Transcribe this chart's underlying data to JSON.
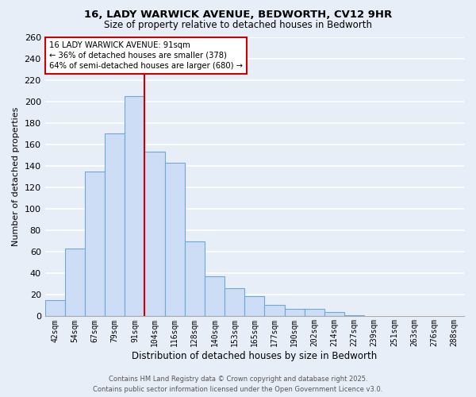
{
  "title_line1": "16, LADY WARWICK AVENUE, BEDWORTH, CV12 9HR",
  "title_line2": "Size of property relative to detached houses in Bedworth",
  "xlabel": "Distribution of detached houses by size in Bedworth",
  "ylabel": "Number of detached properties",
  "bin_labels": [
    "42sqm",
    "54sqm",
    "67sqm",
    "79sqm",
    "91sqm",
    "104sqm",
    "116sqm",
    "128sqm",
    "140sqm",
    "153sqm",
    "165sqm",
    "177sqm",
    "190sqm",
    "202sqm",
    "214sqm",
    "227sqm",
    "239sqm",
    "251sqm",
    "263sqm",
    "276sqm",
    "288sqm"
  ],
  "bar_values": [
    15,
    63,
    135,
    170,
    205,
    153,
    143,
    70,
    37,
    26,
    19,
    11,
    7,
    7,
    4,
    1,
    0,
    0,
    0,
    0,
    0
  ],
  "bar_color": "#ccddf5",
  "bar_edge_color": "#6aaad4",
  "ylim": [
    0,
    260
  ],
  "yticks": [
    0,
    20,
    40,
    60,
    80,
    100,
    120,
    140,
    160,
    180,
    200,
    220,
    240,
    260
  ],
  "vline_color": "#cc0000",
  "vline_bar_index": 4,
  "annotation_title": "16 LADY WARWICK AVENUE: 91sqm",
  "annotation_line2": "← 36% of detached houses are smaller (378)",
  "annotation_line3": "64% of semi-detached houses are larger (680) →",
  "footer_line1": "Contains HM Land Registry data © Crown copyright and database right 2025.",
  "footer_line2": "Contains public sector information licensed under the Open Government Licence v3.0.",
  "fig_bg_color": "#e8eef8",
  "plot_bg_color": "#e8eef8",
  "grid_color": "#ffffff"
}
